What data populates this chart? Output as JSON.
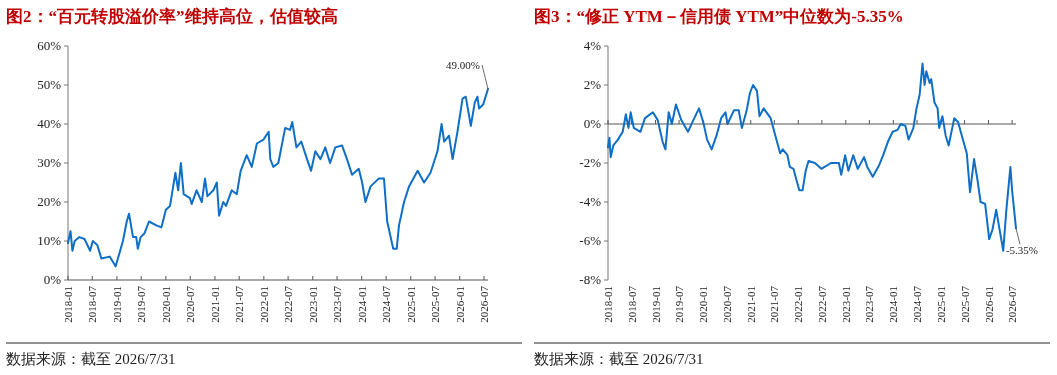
{
  "chart_data": [
    {
      "type": "line",
      "title": "图2：“百元转股溢价率”维持高位，估值较高",
      "xlim": [
        "2018-01-01",
        "2026-07-31"
      ],
      "ylim": [
        0,
        60
      ],
      "xticks": [
        "2018-01",
        "2018-07",
        "2019-01",
        "2019-07",
        "2020-01",
        "2020-07",
        "2021-01",
        "2021-07",
        "2022-01",
        "2022-07",
        "2023-01",
        "2023-07",
        "2024-01",
        "2024-07",
        "2025-01",
        "2025-07",
        "2026-01",
        "2026-07"
      ],
      "yticks": [
        {
          "value": 0,
          "label": "0%"
        },
        {
          "value": 10,
          "label": "10%"
        },
        {
          "value": 20,
          "label": "20%"
        },
        {
          "value": 30,
          "label": "30%"
        },
        {
          "value": 40,
          "label": "40%"
        },
        {
          "value": 50,
          "label": "50%"
        },
        {
          "value": 60,
          "label": "60%"
        }
      ],
      "x": [
        "2018-01-01",
        "2018-01-20",
        "2018-02-03",
        "2018-02-20",
        "2018-03-27",
        "2018-05-04",
        "2018-06-15",
        "2018-07-05",
        "2018-08-07",
        "2018-09-07",
        "2018-11-08",
        "2018-12-22",
        "2019-01-04",
        "2019-02-15",
        "2019-03-15",
        "2019-04-01",
        "2019-05-01",
        "2019-05-25",
        "2019-06-06",
        "2019-06-27",
        "2019-07-26",
        "2019-08-28",
        "2019-10-22",
        "2019-11-29",
        "2020-01-01",
        "2020-02-01",
        "2020-02-20",
        "2020-03-12",
        "2020-04-02",
        "2020-04-22",
        "2020-05-13",
        "2020-06-28",
        "2020-07-12",
        "2020-08-17",
        "2020-09-25",
        "2020-10-19",
        "2020-11-06",
        "2020-12-20",
        "2021-01-15",
        "2021-02-01",
        "2021-03-04",
        "2021-03-25",
        "2021-05-06",
        "2021-06-13",
        "2021-07-12",
        "2021-08-26",
        "2021-10-03",
        "2021-11-10",
        "2021-12-29",
        "2022-02-06",
        "2022-02-18",
        "2022-03-13",
        "2022-04-19",
        "2022-06-09",
        "2022-07-15",
        "2022-08-01",
        "2022-09-01",
        "2022-10-07",
        "2022-11-19",
        "2022-12-19",
        "2023-01-20",
        "2023-02-27",
        "2023-04-04",
        "2023-05-10",
        "2023-06-18",
        "2023-08-07",
        "2023-09-13",
        "2023-10-21",
        "2023-12-10",
        "2024-01-04",
        "2024-01-29",
        "2024-03-07",
        "2024-05-07",
        "2024-06-15",
        "2024-07-09",
        "2024-08-23",
        "2024-09-18",
        "2024-10-05",
        "2024-11-12",
        "2024-12-19",
        "2025-02-21",
        "2025-04-10",
        "2025-05-28",
        "2025-07-19",
        "2025-08-19",
        "2025-09-07",
        "2025-10-13",
        "2025-11-09",
        "2025-12-15",
        "2026-01-22",
        "2026-02-15",
        "2026-03-25",
        "2026-04-23",
        "2026-05-13",
        "2026-05-25",
        "2026-06-25",
        "2026-07-31"
      ],
      "series": [
        {
          "color": "#0f6fc6",
          "values": [
            9.5,
            12.5,
            7.5,
            10,
            11,
            10.5,
            7.5,
            10,
            9,
            5.5,
            6,
            3.5,
            5,
            10,
            15,
            17,
            11,
            11,
            8,
            11,
            12,
            15,
            14,
            13.5,
            18,
            19,
            23,
            27.5,
            23,
            30,
            22,
            21,
            19.5,
            23,
            20,
            26,
            21.5,
            23,
            25,
            16.5,
            20,
            19,
            23,
            22,
            28,
            32,
            29,
            35,
            36,
            38,
            31,
            29,
            30,
            39,
            38.5,
            40.5,
            34,
            35.5,
            31,
            28,
            33,
            31,
            34,
            30,
            34,
            34.5,
            31,
            27,
            28.5,
            25,
            20,
            24,
            26,
            26,
            15,
            8,
            8,
            14,
            20,
            24,
            28,
            25,
            27.5,
            33,
            40,
            35.5,
            37,
            31,
            38,
            46.5,
            47,
            39.5,
            45.5,
            47,
            44,
            45,
            49
          ]
        }
      ],
      "annotations": [
        {
          "text": "49.00%",
          "x": "2026-07-31",
          "y": 49
        },
        "数据来源：截至 2026/7/31"
      ]
    },
    {
      "type": "line",
      "title": "图3：“修正 YTM－信用债 YTM”中位数为-5.35%",
      "xlim": [
        "2018-01-01",
        "2026-07-31"
      ],
      "ylim": [
        -8,
        4
      ],
      "xticks": [
        "2018-01",
        "2018-07",
        "2019-01",
        "2019-07",
        "2020-01",
        "2020-07",
        "2021-01",
        "2021-07",
        "2022-01",
        "2022-07",
        "2023-01",
        "2023-07",
        "2024-01",
        "2024-07",
        "2025-01",
        "2025-07",
        "2026-01",
        "2026-07"
      ],
      "yticks": [
        {
          "value": -8,
          "label": "-8%"
        },
        {
          "value": -6,
          "label": "-6%"
        },
        {
          "value": -4,
          "label": "-4%"
        },
        {
          "value": -2,
          "label": "-2%"
        },
        {
          "value": 0,
          "label": "0%"
        },
        {
          "value": 2,
          "label": "2%"
        },
        {
          "value": 4,
          "label": "4%"
        }
      ],
      "x": [
        "2018-01-01",
        "2018-01-12",
        "2018-01-22",
        "2018-02-11",
        "2018-03-18",
        "2018-04-24",
        "2018-05-18",
        "2018-06-07",
        "2018-06-24",
        "2018-07-18",
        "2018-09-07",
        "2018-10-12",
        "2018-12-12",
        "2019-01-18",
        "2019-02-24",
        "2019-03-18",
        "2019-04-12",
        "2019-05-06",
        "2019-06-07",
        "2019-07-18",
        "2019-09-07",
        "2019-10-18",
        "2019-12-01",
        "2020-01-02",
        "2020-02-01",
        "2020-03-07",
        "2020-04-13",
        "2020-05-19",
        "2020-06-21",
        "2020-07-07",
        "2020-08-25",
        "2020-10-01",
        "2020-10-25",
        "2020-12-01",
        "2020-12-26",
        "2021-01-19",
        "2021-02-18",
        "2021-03-09",
        "2021-04-10",
        "2021-06-03",
        "2021-07-01",
        "2021-08-15",
        "2021-09-04",
        "2021-10-10",
        "2021-10-28",
        "2021-11-25",
        "2021-12-15",
        "2022-01-09",
        "2022-02-03",
        "2022-02-27",
        "2022-03-21",
        "2022-05-09",
        "2022-06-27",
        "2022-09-09",
        "2022-11-09",
        "2022-11-27",
        "2022-12-27",
        "2023-01-21",
        "2023-02-27",
        "2023-04-03",
        "2023-05-21",
        "2023-06-15",
        "2023-07-27",
        "2023-09-15",
        "2023-10-15",
        "2023-11-21",
        "2023-12-27",
        "2024-02-03",
        "2024-02-27",
        "2024-04-03",
        "2024-04-27",
        "2024-06-03",
        "2024-06-27",
        "2024-07-21",
        "2024-08-12",
        "2024-08-28",
        "2024-09-10",
        "2024-10-06",
        "2024-10-18",
        "2024-11-12",
        "2024-12-06",
        "2024-12-18",
        "2025-01-12",
        "2025-02-06",
        "2025-03-01",
        "2025-04-13",
        "2025-05-12",
        "2025-06-18",
        "2025-07-18",
        "2025-08-12",
        "2025-09-12",
        "2025-10-09",
        "2025-11-01",
        "2025-12-06",
        "2026-01-06",
        "2026-02-01",
        "2026-03-01",
        "2026-04-06",
        "2026-04-24",
        "2026-05-18",
        "2026-06-18",
        "2026-07-01",
        "2026-07-31"
      ],
      "series": [
        {
          "color": "#0f6fc6",
          "values": [
            -1.2,
            -0.7,
            -1.7,
            -1.1,
            -0.8,
            -0.4,
            0.5,
            -0.2,
            0.6,
            -0.2,
            -0.4,
            0.3,
            0.6,
            0.2,
            -0.9,
            -1.3,
            0.6,
            0,
            1,
            0.2,
            -0.4,
            0.2,
            0.8,
            0.1,
            -0.8,
            -1.3,
            -0.6,
            0.3,
            0.6,
            0,
            0.7,
            0.7,
            -0.2,
            0.7,
            1.6,
            2,
            1.7,
            0.4,
            0.8,
            0.3,
            -0.4,
            -1.5,
            -1.3,
            -1.6,
            -2.2,
            -2.3,
            -2.8,
            -3.4,
            -3.4,
            -2.4,
            -1.9,
            -2.0,
            -2.3,
            -2.0,
            -2.0,
            -2.6,
            -1.6,
            -2.4,
            -1.6,
            -2.3,
            -1.7,
            -2.2,
            -2.7,
            -2.1,
            -1.6,
            -0.9,
            -0.4,
            -0.3,
            0,
            -0.1,
            -0.8,
            -0.2,
            0.8,
            1.5,
            3.1,
            2,
            2.7,
            2.1,
            2.3,
            1.1,
            0.8,
            -0.2,
            0.4,
            -0.6,
            -1.1,
            0.3,
            0.1,
            -0.8,
            -1.5,
            -3.5,
            -1.8,
            -2.9,
            -4.0,
            -4.1,
            -5.9,
            -5.4,
            -4.4,
            -5.8,
            -6.5,
            -4.4,
            -2.2,
            -3.4,
            -5.35
          ]
        }
      ],
      "annotations": [
        {
          "text": "-5.35%",
          "x": "2026-07-31",
          "y": -5.35
        },
        "数据来源：截至 2026/7/31"
      ]
    }
  ]
}
